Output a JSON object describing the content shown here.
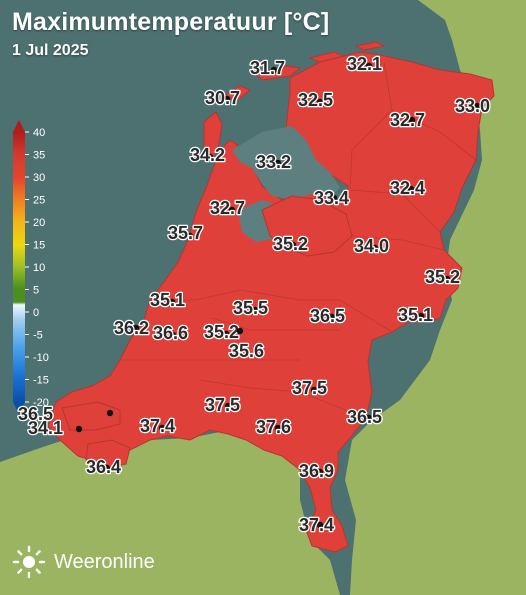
{
  "header": {
    "title": "Maximumtemperatuur [°C]",
    "date": "1 Jul 2025"
  },
  "legend": {
    "ticks": [
      "40",
      "35",
      "30",
      "25",
      "20",
      "15",
      "10",
      "5",
      "0",
      "-5",
      "-10",
      "-15",
      "-20"
    ],
    "colors": [
      "#b11c1c",
      "#d23a2e",
      "#e5452d",
      "#ef7f1f",
      "#f2b418",
      "#ecd70f",
      "#9cbf25",
      "#4b8f1e",
      "#eef7ff",
      "#9ccaf0",
      "#4aa0ea",
      "#1d74d8",
      "#0b4fa8"
    ]
  },
  "map": {
    "sea_color": "#4d7171",
    "land_foreign_color": "#9bb462",
    "nl_fill_color": "#e0403a",
    "stations": [
      {
        "value": "31.7"
      },
      {
        "value": "32.1"
      },
      {
        "value": "30.7"
      },
      {
        "value": "32.5"
      },
      {
        "value": "33.0"
      },
      {
        "value": "32.7"
      },
      {
        "value": "34.2"
      },
      {
        "value": "33.2"
      },
      {
        "value": "33.4"
      },
      {
        "value": "32.4"
      },
      {
        "value": "32.7"
      },
      {
        "value": "35.7"
      },
      {
        "value": "35.2"
      },
      {
        "value": "34.0"
      },
      {
        "value": "35.2"
      },
      {
        "value": "35.1"
      },
      {
        "value": "35.5"
      },
      {
        "value": "36.5"
      },
      {
        "value": "35.1"
      },
      {
        "value": "36.2"
      },
      {
        "value": "36.6"
      },
      {
        "value": "35.2"
      },
      {
        "value": "35.6"
      },
      {
        "value": "37.5"
      },
      {
        "value": "36.5"
      },
      {
        "value": "37.5"
      },
      {
        "value": "34.1"
      },
      {
        "value": "37.4"
      },
      {
        "value": "37.6"
      },
      {
        "value": "36.5"
      },
      {
        "value": "36.4"
      },
      {
        "value": "36.9"
      },
      {
        "value": "37.4"
      }
    ]
  },
  "brand": {
    "name": "Weeronline"
  }
}
